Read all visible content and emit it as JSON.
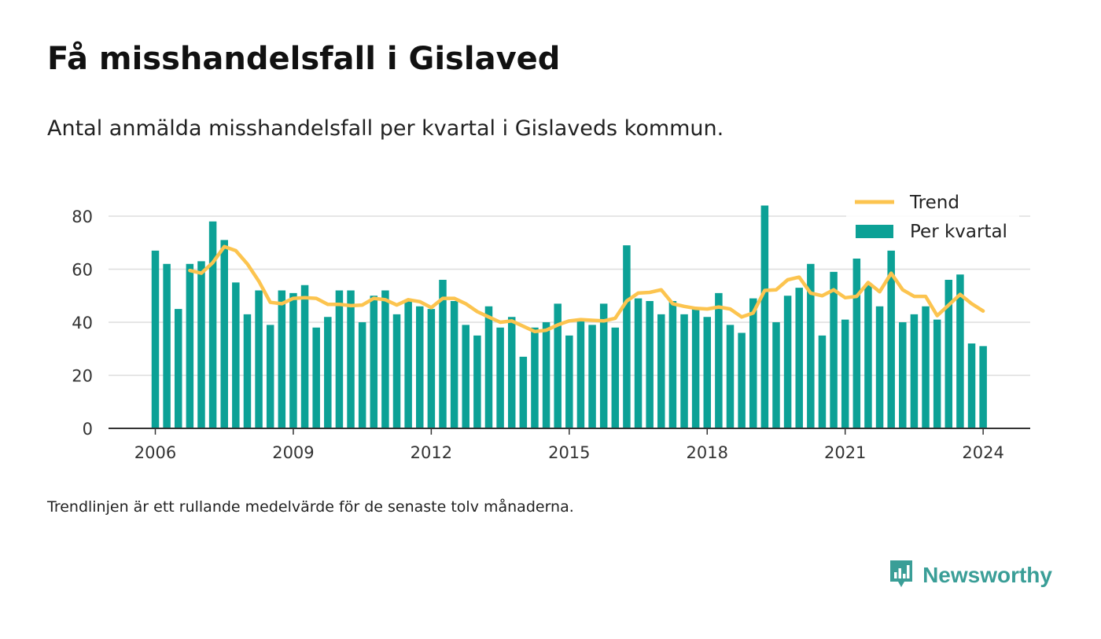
{
  "title": "Få misshandelsfall i Gislaved",
  "subtitle": "Antal anmälda misshandelsfall per kvartal i Gislaveds kommun.",
  "footnote": "Trendlinjen är ett rullande medelvärde för de senaste tolv månaderna.",
  "brand": "Newsworthy",
  "colors": {
    "bar": "#0ca196",
    "trend": "#fcc44f",
    "grid": "#dddddd",
    "brand": "#3a9e97"
  },
  "chart_data": {
    "type": "bar",
    "ylim": [
      0,
      90
    ],
    "yticks": [
      0,
      20,
      40,
      60,
      80
    ],
    "x_tick_labels": [
      "2006",
      "2009",
      "2012",
      "2015",
      "2018",
      "2021",
      "2024"
    ],
    "legend": {
      "position": "top-right",
      "entries": [
        "Trend",
        "Per kvartal"
      ]
    },
    "grid": true,
    "categories": [
      "2006 Q1",
      "2006 Q2",
      "2006 Q3",
      "2006 Q4",
      "2007 Q1",
      "2007 Q2",
      "2007 Q3",
      "2007 Q4",
      "2008 Q1",
      "2008 Q2",
      "2008 Q3",
      "2008 Q4",
      "2009 Q1",
      "2009 Q2",
      "2009 Q3",
      "2009 Q4",
      "2010 Q1",
      "2010 Q2",
      "2010 Q3",
      "2010 Q4",
      "2011 Q1",
      "2011 Q2",
      "2011 Q3",
      "2011 Q4",
      "2012 Q1",
      "2012 Q2",
      "2012 Q3",
      "2012 Q4",
      "2013 Q1",
      "2013 Q2",
      "2013 Q3",
      "2013 Q4",
      "2014 Q1",
      "2014 Q2",
      "2014 Q3",
      "2014 Q4",
      "2015 Q1",
      "2015 Q2",
      "2015 Q3",
      "2015 Q4",
      "2016 Q1",
      "2016 Q2",
      "2016 Q3",
      "2016 Q4",
      "2017 Q1",
      "2017 Q2",
      "2017 Q3",
      "2017 Q4",
      "2018 Q1",
      "2018 Q2",
      "2018 Q3",
      "2018 Q4",
      "2019 Q1",
      "2019 Q2",
      "2019 Q3",
      "2019 Q4",
      "2020 Q1",
      "2020 Q2",
      "2020 Q3",
      "2020 Q4",
      "2021 Q1",
      "2021 Q2",
      "2021 Q3",
      "2021 Q4",
      "2022 Q1",
      "2022 Q2",
      "2022 Q3",
      "2022 Q4",
      "2023 Q1",
      "2023 Q2",
      "2023 Q3",
      "2023 Q4",
      "2024 Q1"
    ],
    "series": [
      {
        "name": "Per kvartal",
        "values": [
          67,
          62,
          45,
          62,
          63,
          78,
          71,
          55,
          43,
          52,
          39,
          52,
          51,
          54,
          38,
          42,
          52,
          52,
          40,
          50,
          52,
          43,
          48,
          46,
          45,
          56,
          48,
          39,
          35,
          46,
          38,
          42,
          27,
          38,
          40,
          47,
          35,
          41,
          39,
          47,
          38,
          69,
          49,
          48,
          43,
          48,
          43,
          45,
          42,
          51,
          39,
          36,
          49,
          84,
          40,
          50,
          53,
          62,
          35,
          59,
          41,
          64,
          54,
          46,
          67,
          40,
          43,
          46,
          41,
          56,
          58,
          32,
          31
        ]
      },
      {
        "name": "Trend",
        "values": [
          null,
          null,
          null,
          59.5,
          58.5,
          62.5,
          68.5,
          67,
          62,
          55.5,
          47.5,
          47,
          49,
          49.25,
          49,
          46.75,
          46.75,
          46.25,
          46.5,
          49,
          48.5,
          46.5,
          48.5,
          47.75,
          45.5,
          49,
          49,
          47,
          44,
          42,
          40,
          40.5,
          38.5,
          36.5,
          37,
          39,
          40.5,
          41,
          40.75,
          40.5,
          41.5,
          48,
          51,
          51.25,
          52.25,
          47,
          46,
          45.25,
          45,
          45.75,
          45,
          42,
          43.5,
          52,
          52.25,
          56,
          57,
          51,
          50,
          52.25,
          49.25,
          49.75,
          55,
          51.5,
          58.5,
          52.25,
          49.75,
          49.75,
          42.5,
          46.5,
          50.5,
          47,
          44.25
        ]
      }
    ]
  }
}
